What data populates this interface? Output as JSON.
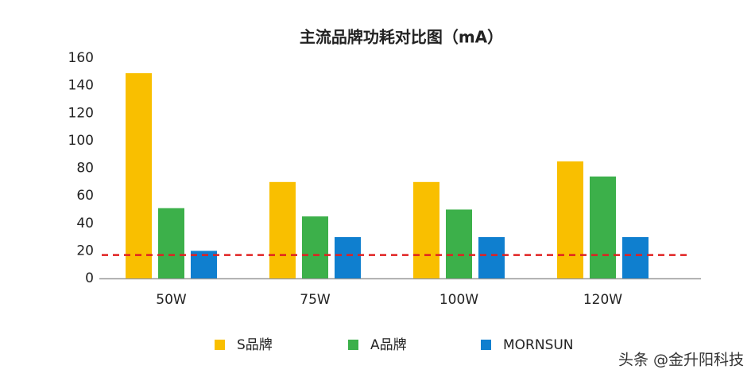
{
  "chart_data": {
    "type": "bar",
    "title": "主流品牌功耗对比图（mA）",
    "categories": [
      "50W",
      "75W",
      "100W",
      "120W"
    ],
    "series": [
      {
        "name": "S品牌",
        "color": "#f9bf00",
        "values": [
          149,
          70,
          70,
          85
        ]
      },
      {
        "name": "A品牌",
        "color": "#3cb04a",
        "values": [
          51,
          45,
          50,
          74
        ]
      },
      {
        "name": "MORNSUN",
        "color": "#0f7fcf",
        "values": [
          20,
          30,
          30,
          30
        ]
      }
    ],
    "ylim": [
      0,
      160
    ],
    "yticks": [
      0,
      20,
      40,
      60,
      80,
      100,
      120,
      140,
      160
    ],
    "grid": false,
    "reference_line": {
      "value": 17,
      "color": "#e02020"
    },
    "legend": "bottom",
    "watermark": "头条 @金升阳科技"
  }
}
